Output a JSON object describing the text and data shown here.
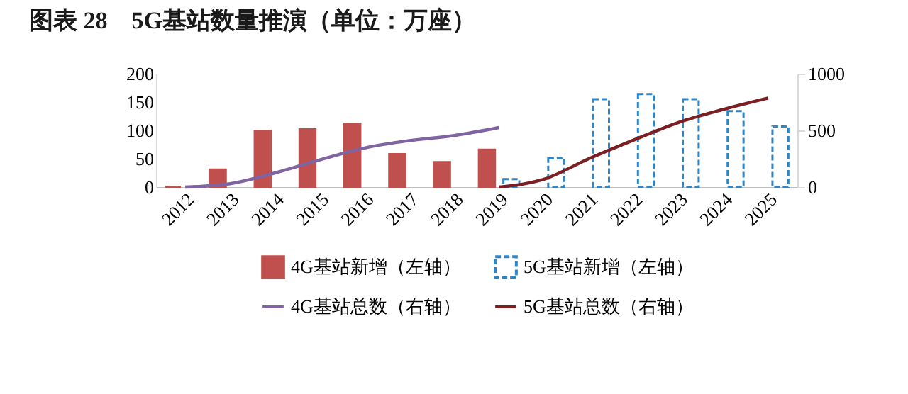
{
  "chart_data": {
    "type": "bar",
    "title": "图表 28　5G基站数量推演（单位：万座）",
    "categories": [
      "2012",
      "2013",
      "2014",
      "2015",
      "2016",
      "2017",
      "2018",
      "2019",
      "2020",
      "2021",
      "2022",
      "2023",
      "2024",
      "2025"
    ],
    "series": [
      {
        "name": "4G基站新增（左轴）",
        "color": "#c0504d",
        "values": [
          0,
          31,
          99,
          102,
          112,
          58,
          44,
          66,
          null,
          null,
          null,
          null,
          null,
          null
        ]
      },
      {
        "name": "5G基站新增（左轴）",
        "color": "#2e86c8",
        "line_style": "dashed",
        "values": [
          null,
          null,
          null,
          null,
          null,
          null,
          null,
          14,
          51,
          155,
          164,
          155,
          134,
          107
        ]
      },
      {
        "name": "4G基站总数（右轴）",
        "type": "line",
        "axis": "y2",
        "color": "#8064a2",
        "values": [
          0,
          30,
          125,
          240,
          345,
          410,
          455,
          525,
          null,
          null,
          null,
          null,
          null,
          null
        ]
      },
      {
        "name": "5G基站总数（右轴）",
        "type": "line",
        "axis": "y2",
        "color": "#7b1f22",
        "values": [
          null,
          null,
          null,
          null,
          null,
          null,
          null,
          0,
          70,
          250,
          415,
          570,
          685,
          785
        ]
      }
    ],
    "ylim": [
      0,
      200
    ],
    "yticks": [
      0,
      50,
      100,
      150,
      200
    ],
    "y2lim": [
      0,
      1000
    ],
    "y2ticks": [
      0,
      500,
      {
        "value": 1000,
        "label": "1000"
      }
    ],
    "legend": "bottom"
  }
}
